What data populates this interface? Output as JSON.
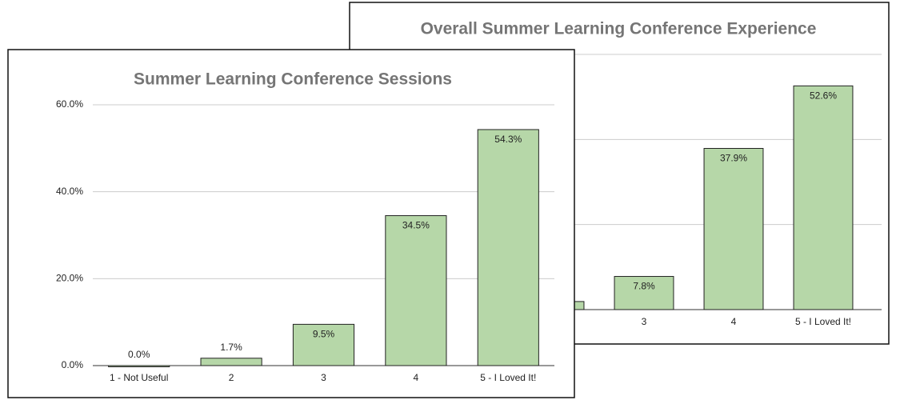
{
  "chart_data": [
    {
      "type": "bar",
      "title": "Overall Summer Learning Conference Experience",
      "categories": [
        null,
        null,
        "3",
        "4",
        "5 - I Loved It!"
      ],
      "values": [
        null,
        1.9,
        7.8,
        37.9,
        52.6
      ],
      "value_labels": [
        null,
        null,
        "7.8%",
        "37.9%",
        "52.6%"
      ],
      "color": "#b6d7a8",
      "ylim": [
        0,
        60
      ],
      "yticks": [
        0,
        20,
        40,
        60
      ],
      "grid": true
    },
    {
      "type": "bar",
      "title": "Summer Learning Conference Sessions",
      "categories": [
        "1 - Not Useful",
        "2",
        "3",
        "4",
        "5 - I Loved It!"
      ],
      "values": [
        0.0,
        1.7,
        9.5,
        34.5,
        54.3
      ],
      "value_labels": [
        "0.0%",
        "1.7%",
        "9.5%",
        "34.5%",
        "54.3%"
      ],
      "color": "#b6d7a8",
      "ylim": [
        0,
        60
      ],
      "yticks": [
        {
          "value": 0,
          "label": "0.0%"
        },
        {
          "value": 20,
          "label": "20.0%"
        },
        {
          "value": 40,
          "label": "40.0%"
        },
        {
          "value": 60,
          "label": "60.0%"
        }
      ],
      "grid": true
    }
  ]
}
